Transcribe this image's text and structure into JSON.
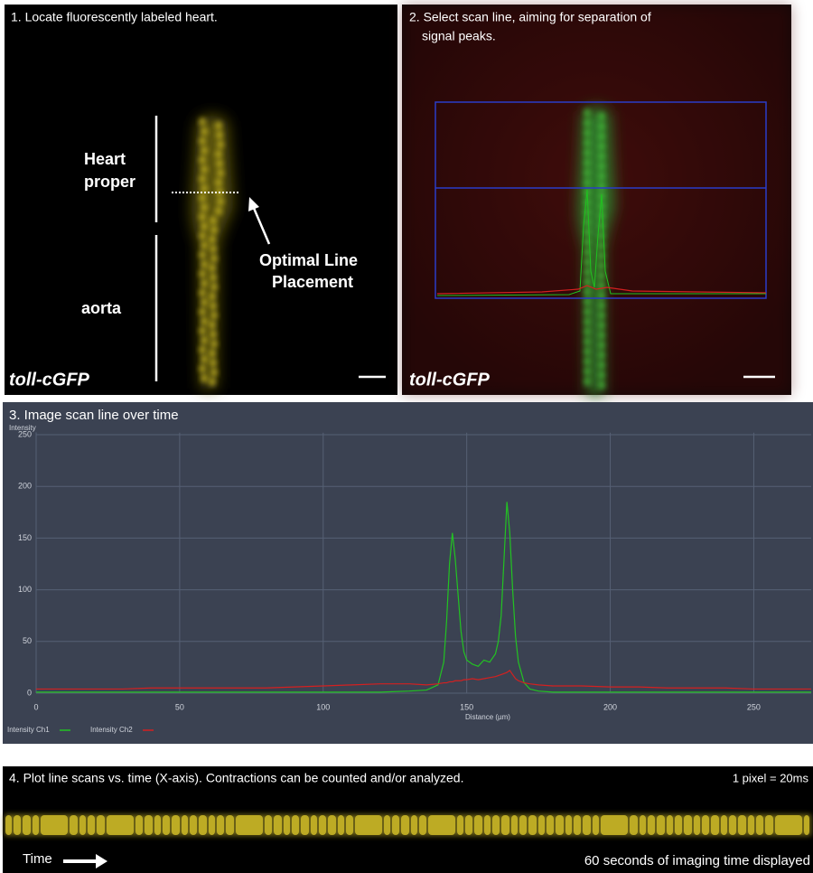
{
  "panel1": {
    "title": "1. Locate fluorescently labeled heart.",
    "heart_label": [
      "Heart",
      "proper"
    ],
    "aorta_label": "aorta",
    "line_label": [
      "Optimal Line",
      "Placement"
    ],
    "strain": "toll-cGFP"
  },
  "panel2": {
    "title": [
      "2. Select scan line, aiming for separation of",
      "signal peaks."
    ],
    "strain": "toll-cGFP"
  },
  "chart_data": {
    "type": "line",
    "title": "3. Image scan line over time",
    "y_label": "Intensity",
    "x_label": "Distance (µm)",
    "x": [
      0,
      10,
      20,
      30,
      40,
      50,
      60,
      70,
      80,
      90,
      100,
      110,
      120,
      130,
      136,
      140,
      142,
      143,
      144,
      145,
      146,
      147,
      148,
      149,
      150,
      152,
      154,
      156,
      158,
      160,
      161,
      162,
      163,
      164,
      165,
      166,
      167,
      168,
      170,
      172,
      175,
      180,
      190,
      200,
      210,
      220,
      230,
      240,
      250,
      260,
      270
    ],
    "series": [
      {
        "name": "Intensity Ch1",
        "color": "#22c322",
        "values": [
          1,
          1,
          1,
          1,
          1,
          1,
          1,
          1,
          1,
          1,
          1,
          1,
          1,
          2,
          3,
          8,
          30,
          70,
          125,
          155,
          130,
          95,
          60,
          40,
          32,
          28,
          26,
          32,
          30,
          38,
          50,
          75,
          130,
          185,
          155,
          100,
          55,
          30,
          10,
          4,
          2,
          1,
          1,
          1,
          1,
          1,
          1,
          1,
          1,
          1,
          1
        ]
      },
      {
        "name": "Intensity Ch2",
        "color": "#d42020",
        "values": [
          4,
          4,
          4,
          4,
          5,
          5,
          5,
          5,
          5,
          6,
          7,
          8,
          9,
          9,
          8,
          9,
          10,
          10,
          11,
          11,
          12,
          12,
          12,
          13,
          13,
          14,
          13,
          14,
          15,
          16,
          17,
          18,
          19,
          20,
          22,
          18,
          14,
          12,
          10,
          9,
          8,
          7,
          7,
          6,
          6,
          5,
          5,
          5,
          4,
          4,
          4
        ]
      }
    ],
    "xlim": [
      0,
      270
    ],
    "ylim": [
      0,
      252
    ],
    "xticks": [
      0,
      50,
      100,
      150,
      200,
      250
    ],
    "yticks": [
      0,
      50,
      100,
      150,
      200,
      250
    ],
    "grid": true,
    "legend": "bottom-left"
  },
  "panel4": {
    "title": "4. Plot line scans vs. time (X-axis). Contractions can be counted and/or analyzed.",
    "scale": "1 pixel = 20ms",
    "time_label": "Time",
    "caption": "60 seconds of imaging time displayed"
  }
}
